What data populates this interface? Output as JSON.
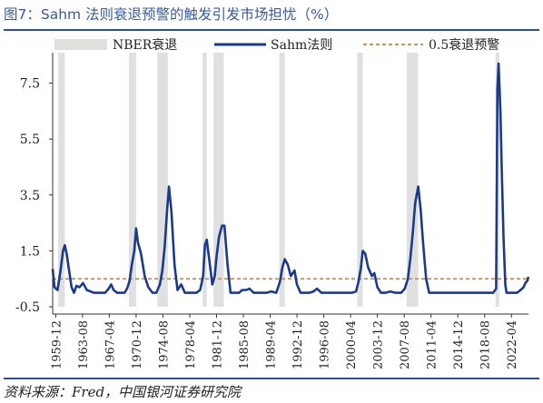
{
  "title": "图7：Sahm 法则衰退预警的触发引发市场担忧（%）",
  "source": "资料来源：Fred，中国银河证券研究院",
  "colors": {
    "title": "#3a5a98",
    "sahm": "#1a3a8c",
    "threshold": "#c8935a",
    "recession": "#e0e0e0",
    "axis": "#333333"
  },
  "chart_data": {
    "type": "line",
    "title": "图7：Sahm 法则衰退预警的触发引发市场担忧（%）",
    "xlabel": "",
    "ylabel": "",
    "ylim": [
      -0.5,
      8.2
    ],
    "xlim": [
      "1959-07",
      "2024-08"
    ],
    "yticks": [
      "-0.5",
      "1.5",
      "3.5",
      "5.5",
      "7.5"
    ],
    "ytick_values": [
      -0.5,
      1.5,
      3.5,
      5.5,
      7.5
    ],
    "xticks": [
      "1959-12",
      "1963-08",
      "1967-04",
      "1970-12",
      "1974-08",
      "1978-04",
      "1981-12",
      "1985-08",
      "1989-04",
      "1992-12",
      "1996-08",
      "2000-04",
      "2003-12",
      "2007-08",
      "2011-04",
      "2014-12",
      "2018-08",
      "2022-04"
    ],
    "grid": false,
    "legend": {
      "position": "top",
      "entries": [
        "NBER衰退",
        "Sahm法则",
        "0.5衰退预警"
      ]
    },
    "recessions": [
      {
        "start": "1960-04",
        "end": "1961-02"
      },
      {
        "start": "1969-12",
        "end": "1970-11"
      },
      {
        "start": "1973-11",
        "end": "1975-03"
      },
      {
        "start": "1980-01",
        "end": "1980-07"
      },
      {
        "start": "1981-07",
        "end": "1982-11"
      },
      {
        "start": "1990-07",
        "end": "1991-03"
      },
      {
        "start": "2001-03",
        "end": "2001-11"
      },
      {
        "start": "2007-12",
        "end": "2009-06"
      },
      {
        "start": "2020-02",
        "end": "2020-04"
      }
    ],
    "threshold": {
      "name": "0.5衰退预警",
      "value": 0.5
    },
    "series": [
      {
        "name": "Sahm法则",
        "points": [
          [
            "1959-07",
            0.85
          ],
          [
            "1959-10",
            0.2
          ],
          [
            "1960-03",
            0.1
          ],
          [
            "1960-08",
            0.8
          ],
          [
            "1960-12",
            1.5
          ],
          [
            "1961-03",
            1.7
          ],
          [
            "1961-06",
            1.4
          ],
          [
            "1961-10",
            0.8
          ],
          [
            "1962-02",
            0.2
          ],
          [
            "1962-06",
            0.0
          ],
          [
            "1962-10",
            0.25
          ],
          [
            "1963-03",
            0.2
          ],
          [
            "1963-09",
            0.35
          ],
          [
            "1964-03",
            0.1
          ],
          [
            "1964-09",
            0.05
          ],
          [
            "1965-03",
            0.0
          ],
          [
            "1965-09",
            0.0
          ],
          [
            "1966-03",
            0.0
          ],
          [
            "1966-09",
            0.0
          ],
          [
            "1967-03",
            0.15
          ],
          [
            "1967-07",
            0.3
          ],
          [
            "1967-11",
            0.1
          ],
          [
            "1968-05",
            0.0
          ],
          [
            "1968-11",
            0.0
          ],
          [
            "1969-05",
            0.0
          ],
          [
            "1969-09",
            0.15
          ],
          [
            "1970-01",
            0.4
          ],
          [
            "1970-05",
            1.0
          ],
          [
            "1970-09",
            1.5
          ],
          [
            "1970-12",
            2.3
          ],
          [
            "1971-03",
            1.8
          ],
          [
            "1971-08",
            1.4
          ],
          [
            "1972-02",
            0.6
          ],
          [
            "1972-08",
            0.2
          ],
          [
            "1973-03",
            0.0
          ],
          [
            "1973-09",
            0.0
          ],
          [
            "1974-03",
            0.3
          ],
          [
            "1974-07",
            0.8
          ],
          [
            "1974-11",
            1.7
          ],
          [
            "1975-03",
            3.0
          ],
          [
            "1975-06",
            3.8
          ],
          [
            "1975-10",
            2.9
          ],
          [
            "1976-03",
            1.0
          ],
          [
            "1976-08",
            0.1
          ],
          [
            "1977-02",
            0.3
          ],
          [
            "1977-08",
            0.0
          ],
          [
            "1978-03",
            0.0
          ],
          [
            "1978-09",
            0.0
          ],
          [
            "1979-03",
            0.0
          ],
          [
            "1979-09",
            0.1
          ],
          [
            "1980-02",
            0.6
          ],
          [
            "1980-05",
            1.7
          ],
          [
            "1980-08",
            1.9
          ],
          [
            "1980-12",
            1.2
          ],
          [
            "1981-05",
            0.3
          ],
          [
            "1981-09",
            0.6
          ],
          [
            "1981-12",
            1.3
          ],
          [
            "1982-04",
            2.0
          ],
          [
            "1982-09",
            2.4
          ],
          [
            "1983-01",
            2.4
          ],
          [
            "1983-06",
            1.0
          ],
          [
            "1983-11",
            0.0
          ],
          [
            "1984-06",
            0.0
          ],
          [
            "1985-01",
            0.0
          ],
          [
            "1985-06",
            0.1
          ],
          [
            "1986-01",
            0.1
          ],
          [
            "1986-06",
            0.15
          ],
          [
            "1987-01",
            0.0
          ],
          [
            "1987-08",
            0.0
          ],
          [
            "1988-03",
            0.0
          ],
          [
            "1988-10",
            0.0
          ],
          [
            "1989-06",
            0.05
          ],
          [
            "1990-02",
            0.0
          ],
          [
            "1990-08",
            0.4
          ],
          [
            "1990-12",
            0.9
          ],
          [
            "1991-04",
            1.2
          ],
          [
            "1991-09",
            1.0
          ],
          [
            "1992-02",
            0.6
          ],
          [
            "1992-08",
            0.8
          ],
          [
            "1992-12",
            0.3
          ],
          [
            "1993-06",
            0.0
          ],
          [
            "1994-01",
            0.0
          ],
          [
            "1994-08",
            0.0
          ],
          [
            "1995-03",
            0.05
          ],
          [
            "1995-09",
            0.15
          ],
          [
            "1996-04",
            0.0
          ],
          [
            "1996-10",
            0.0
          ],
          [
            "1997-06",
            0.0
          ],
          [
            "1998-02",
            0.0
          ],
          [
            "1998-09",
            0.0
          ],
          [
            "1999-04",
            0.0
          ],
          [
            "1999-11",
            0.0
          ],
          [
            "2000-06",
            0.0
          ],
          [
            "2001-01",
            0.05
          ],
          [
            "2001-05",
            0.4
          ],
          [
            "2001-09",
            0.9
          ],
          [
            "2001-12",
            1.5
          ],
          [
            "2002-04",
            1.4
          ],
          [
            "2002-09",
            0.9
          ],
          [
            "2003-03",
            0.6
          ],
          [
            "2003-07",
            0.7
          ],
          [
            "2003-12",
            0.2
          ],
          [
            "2004-06",
            0.0
          ],
          [
            "2005-01",
            0.0
          ],
          [
            "2005-09",
            0.05
          ],
          [
            "2006-06",
            0.0
          ],
          [
            "2007-03",
            0.0
          ],
          [
            "2007-09",
            0.15
          ],
          [
            "2008-02",
            0.5
          ],
          [
            "2008-06",
            1.2
          ],
          [
            "2008-10",
            2.1
          ],
          [
            "2009-02",
            3.2
          ],
          [
            "2009-07",
            3.8
          ],
          [
            "2009-11",
            3.0
          ],
          [
            "2010-03",
            1.8
          ],
          [
            "2010-08",
            0.5
          ],
          [
            "2011-01",
            0.0
          ],
          [
            "2011-08",
            0.0
          ],
          [
            "2012-04",
            0.0
          ],
          [
            "2013-01",
            0.0
          ],
          [
            "2013-10",
            0.0
          ],
          [
            "2014-07",
            0.0
          ],
          [
            "2015-04",
            0.0
          ],
          [
            "2016-01",
            0.0
          ],
          [
            "2016-10",
            0.0
          ],
          [
            "2017-07",
            0.0
          ],
          [
            "2018-04",
            0.0
          ],
          [
            "2019-01",
            0.0
          ],
          [
            "2019-10",
            0.0
          ],
          [
            "2020-03",
            0.15
          ],
          [
            "2020-05",
            7.3
          ],
          [
            "2020-07",
            8.2
          ],
          [
            "2020-10",
            6.5
          ],
          [
            "2020-12",
            4.5
          ],
          [
            "2021-03",
            2.0
          ],
          [
            "2021-06",
            0.3
          ],
          [
            "2021-08",
            0.0
          ],
          [
            "2022-01",
            0.0
          ],
          [
            "2022-07",
            0.0
          ],
          [
            "2023-01",
            0.0
          ],
          [
            "2023-07",
            0.1
          ],
          [
            "2023-12",
            0.2
          ],
          [
            "2024-03",
            0.35
          ],
          [
            "2024-06",
            0.43
          ],
          [
            "2024-08",
            0.57
          ]
        ]
      }
    ]
  }
}
